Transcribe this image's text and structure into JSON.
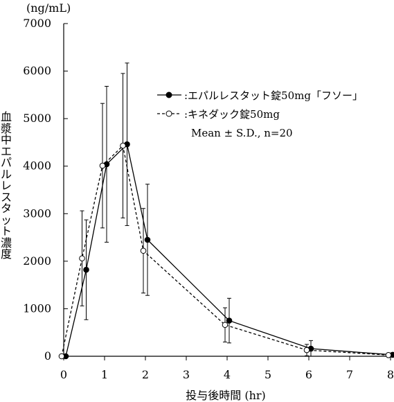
{
  "chart_data": {
    "type": "line",
    "unit_label": "(ng/mL)",
    "xlabel": "投与後時間 (hr)",
    "ylabel": "血漿中エパルレスタット濃度",
    "xlim": [
      0,
      8
    ],
    "ylim": [
      0,
      7000
    ],
    "x_ticks": [
      0,
      1,
      2,
      3,
      4,
      5,
      6,
      7,
      8
    ],
    "y_ticks": [
      0,
      1000,
      2000,
      3000,
      4000,
      5000,
      6000,
      7000
    ],
    "grid": false,
    "legend_position": "upper-right",
    "series": [
      {
        "name": ":エパルレスタット錠50mg「フソー」",
        "marker": "filled-circle",
        "line": "solid",
        "x": [
          0,
          0.5,
          1,
          1.5,
          2,
          4,
          6,
          8
        ],
        "y": [
          0,
          1820,
          4040,
          4460,
          2450,
          750,
          160,
          30
        ],
        "sd": [
          0,
          1050,
          1640,
          1710,
          1170,
          470,
          170,
          30
        ]
      },
      {
        "name": ":キネダック錠50mg",
        "marker": "open-circle",
        "line": "dashed",
        "x": [
          0,
          0.5,
          1,
          1.5,
          2,
          4,
          6,
          8
        ],
        "y": [
          0,
          2060,
          4010,
          4430,
          2220,
          660,
          130,
          25
        ],
        "sd": [
          0,
          1000,
          1310,
          1520,
          890,
          360,
          120,
          20
        ]
      }
    ],
    "annotation": "Mean ± S.D., n=20"
  }
}
